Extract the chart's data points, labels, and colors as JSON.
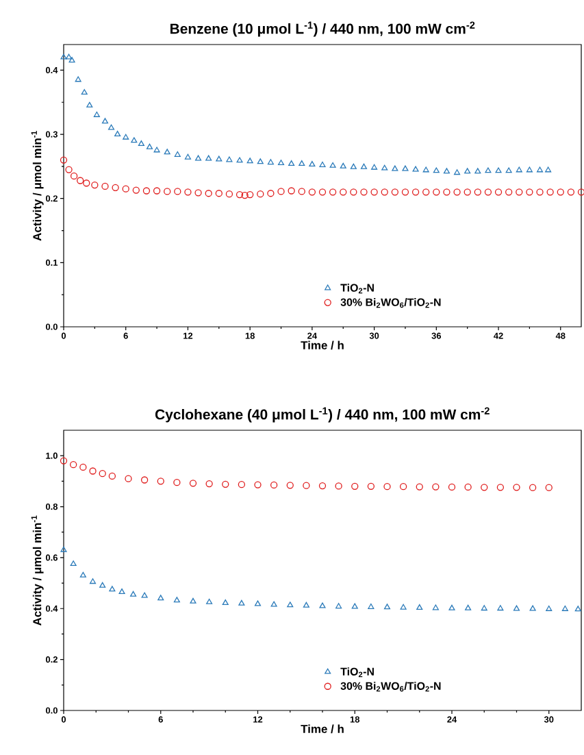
{
  "chart_data": [
    {
      "type": "scatter",
      "title": "Benzene (10 μmol L$^{-1}$) / 440 nm, 100 mW cm$^{-2}$",
      "xlabel": "Time / h",
      "ylabel": "Activity / μmol min$^{-1}$",
      "xlim": [
        0,
        50
      ],
      "xticks": [
        0,
        {
          "value": 3,
          "label": null
        },
        6,
        {
          "value": 9,
          "label": null
        },
        12,
        {
          "value": 15,
          "label": null
        },
        18,
        {
          "value": 21,
          "label": null
        },
        24,
        {
          "value": 27,
          "label": null
        },
        30,
        {
          "value": 33,
          "label": null
        },
        36,
        {
          "value": 39,
          "label": null
        },
        42,
        {
          "value": 45,
          "label": null
        },
        48
      ],
      "ylim": [
        0,
        0.44
      ],
      "yticks": [
        {
          "value": 0,
          "label": "0.0"
        },
        {
          "value": 0.05,
          "label": null
        },
        {
          "value": 0.1,
          "label": "0.1"
        },
        {
          "value": 0.15,
          "label": null
        },
        {
          "value": 0.2,
          "label": "0.2"
        },
        {
          "value": 0.25,
          "label": null
        },
        {
          "value": 0.3,
          "label": "0.3"
        },
        {
          "value": 0.35,
          "label": null
        },
        {
          "value": 0.4,
          "label": "0.4"
        }
      ],
      "legend": "bottom right",
      "grid": false,
      "series": [
        {
          "name": "TiO$_{2}$-N",
          "color": "#2a7ab9",
          "marker": "triangle",
          "x": [
            0,
            0.5,
            0.8,
            1.4,
            2.0,
            2.5,
            3.2,
            4,
            4.6,
            5.2,
            6,
            6.8,
            7.5,
            8.3,
            9,
            10,
            11,
            12,
            13,
            14,
            15,
            16,
            17,
            18,
            19,
            20,
            21,
            22,
            23,
            24,
            25,
            26,
            27,
            28,
            29,
            30,
            31,
            32,
            33,
            34,
            35,
            36,
            37,
            38,
            39,
            40,
            41,
            42,
            43,
            44,
            45,
            46,
            46.8
          ],
          "values": [
            0.42,
            0.42,
            0.415,
            0.385,
            0.365,
            0.345,
            0.33,
            0.32,
            0.31,
            0.3,
            0.295,
            0.29,
            0.285,
            0.28,
            0.275,
            0.272,
            0.268,
            0.264,
            0.262,
            0.262,
            0.261,
            0.26,
            0.259,
            0.258,
            0.257,
            0.256,
            0.255,
            0.254,
            0.254,
            0.253,
            0.252,
            0.251,
            0.25,
            0.249,
            0.249,
            0.248,
            0.247,
            0.246,
            0.246,
            0.245,
            0.244,
            0.243,
            0.242,
            0.24,
            0.242,
            0.242,
            0.243,
            0.243,
            0.243,
            0.244,
            0.244,
            0.244,
            0.244
          ]
        },
        {
          "name": "30% Bi$_{2}$WO$_{6}$/TiO$_{2}$-N",
          "color": "#e01e1e",
          "marker": "circle",
          "x": [
            0,
            0.5,
            1,
            1.6,
            2.2,
            3,
            4,
            5,
            6,
            7,
            8,
            9,
            10,
            11,
            12,
            13,
            14,
            15,
            16,
            17,
            17.5,
            18,
            19,
            20,
            21,
            22,
            23,
            24,
            25,
            26,
            27,
            28,
            29,
            30,
            31,
            32,
            33,
            34,
            35,
            36,
            37,
            38,
            39,
            40,
            41,
            42,
            43,
            44,
            45,
            46,
            47,
            48,
            49,
            50
          ],
          "values": [
            0.26,
            0.245,
            0.235,
            0.228,
            0.224,
            0.221,
            0.219,
            0.217,
            0.215,
            0.213,
            0.212,
            0.212,
            0.211,
            0.211,
            0.21,
            0.209,
            0.208,
            0.208,
            0.207,
            0.206,
            0.205,
            0.206,
            0.207,
            0.208,
            0.211,
            0.212,
            0.211,
            0.21,
            0.21,
            0.21,
            0.21,
            0.21,
            0.21,
            0.21,
            0.21,
            0.21,
            0.21,
            0.21,
            0.21,
            0.21,
            0.21,
            0.21,
            0.21,
            0.21,
            0.21,
            0.21,
            0.21,
            0.21,
            0.21,
            0.21,
            0.21,
            0.21,
            0.21,
            0.21
          ]
        }
      ]
    },
    {
      "type": "scatter",
      "title": "Cyclohexane (40 μmol L$^{-1}$) / 440 nm, 100 mW cm$^{-2}$",
      "xlabel": "Time / h",
      "ylabel": "Activity / μmol min$^{-1}$",
      "xlim": [
        0,
        32
      ],
      "xticks": [
        0,
        {
          "value": 2,
          "label": null
        },
        {
          "value": 4,
          "label": null
        },
        6,
        {
          "value": 8,
          "label": null
        },
        {
          "value": 10,
          "label": null
        },
        12,
        {
          "value": 14,
          "label": null
        },
        {
          "value": 16,
          "label": null
        },
        18,
        {
          "value": 20,
          "label": null
        },
        {
          "value": 22,
          "label": null
        },
        24,
        {
          "value": 26,
          "label": null
        },
        {
          "value": 28,
          "label": null
        },
        30
      ],
      "ylim": [
        0,
        1.1
      ],
      "yticks": [
        {
          "value": 0,
          "label": "0.0"
        },
        {
          "value": 0.1,
          "label": null
        },
        {
          "value": 0.2,
          "label": "0.2"
        },
        {
          "value": 0.3,
          "label": null
        },
        {
          "value": 0.4,
          "label": "0.4"
        },
        {
          "value": 0.5,
          "label": null
        },
        {
          "value": 0.6,
          "label": "0.6"
        },
        {
          "value": 0.7,
          "label": null
        },
        {
          "value": 0.8,
          "label": "0.8"
        },
        {
          "value": 0.9,
          "label": null
        },
        {
          "value": 1.0,
          "label": "1.0"
        }
      ],
      "legend": "bottom right",
      "grid": false,
      "series": [
        {
          "name": "TiO$_{2}$-N",
          "color": "#2a7ab9",
          "marker": "triangle",
          "x": [
            0,
            0.6,
            1.2,
            1.8,
            2.4,
            3,
            3.6,
            4.3,
            5,
            6,
            7,
            8,
            9,
            10,
            11,
            12,
            13,
            14,
            15,
            16,
            17,
            18,
            19,
            20,
            21,
            22,
            23,
            24,
            25,
            26,
            27,
            28,
            29,
            30,
            31,
            31.8
          ],
          "values": [
            0.63,
            0.575,
            0.53,
            0.505,
            0.49,
            0.475,
            0.465,
            0.455,
            0.45,
            0.44,
            0.432,
            0.428,
            0.425,
            0.422,
            0.42,
            0.418,
            0.415,
            0.413,
            0.412,
            0.41,
            0.408,
            0.407,
            0.406,
            0.405,
            0.404,
            0.403,
            0.402,
            0.401,
            0.401,
            0.4,
            0.4,
            0.399,
            0.399,
            0.398,
            0.398,
            0.397
          ]
        },
        {
          "name": "30% Bi$_{2}$WO$_{6}$/TiO$_{2}$-N",
          "color": "#e01e1e",
          "marker": "circle",
          "x": [
            0,
            0.6,
            1.2,
            1.8,
            2.4,
            3,
            4,
            5,
            6,
            7,
            8,
            9,
            10,
            11,
            12,
            13,
            14,
            15,
            16,
            17,
            18,
            19,
            20,
            21,
            22,
            23,
            24,
            25,
            26,
            27,
            28,
            29,
            30
          ],
          "values": [
            0.98,
            0.965,
            0.955,
            0.94,
            0.93,
            0.92,
            0.91,
            0.905,
            0.9,
            0.895,
            0.892,
            0.89,
            0.888,
            0.887,
            0.886,
            0.885,
            0.884,
            0.883,
            0.882,
            0.881,
            0.88,
            0.88,
            0.879,
            0.879,
            0.878,
            0.878,
            0.877,
            0.877,
            0.876,
            0.876,
            0.876,
            0.875,
            0.875
          ]
        }
      ]
    }
  ]
}
